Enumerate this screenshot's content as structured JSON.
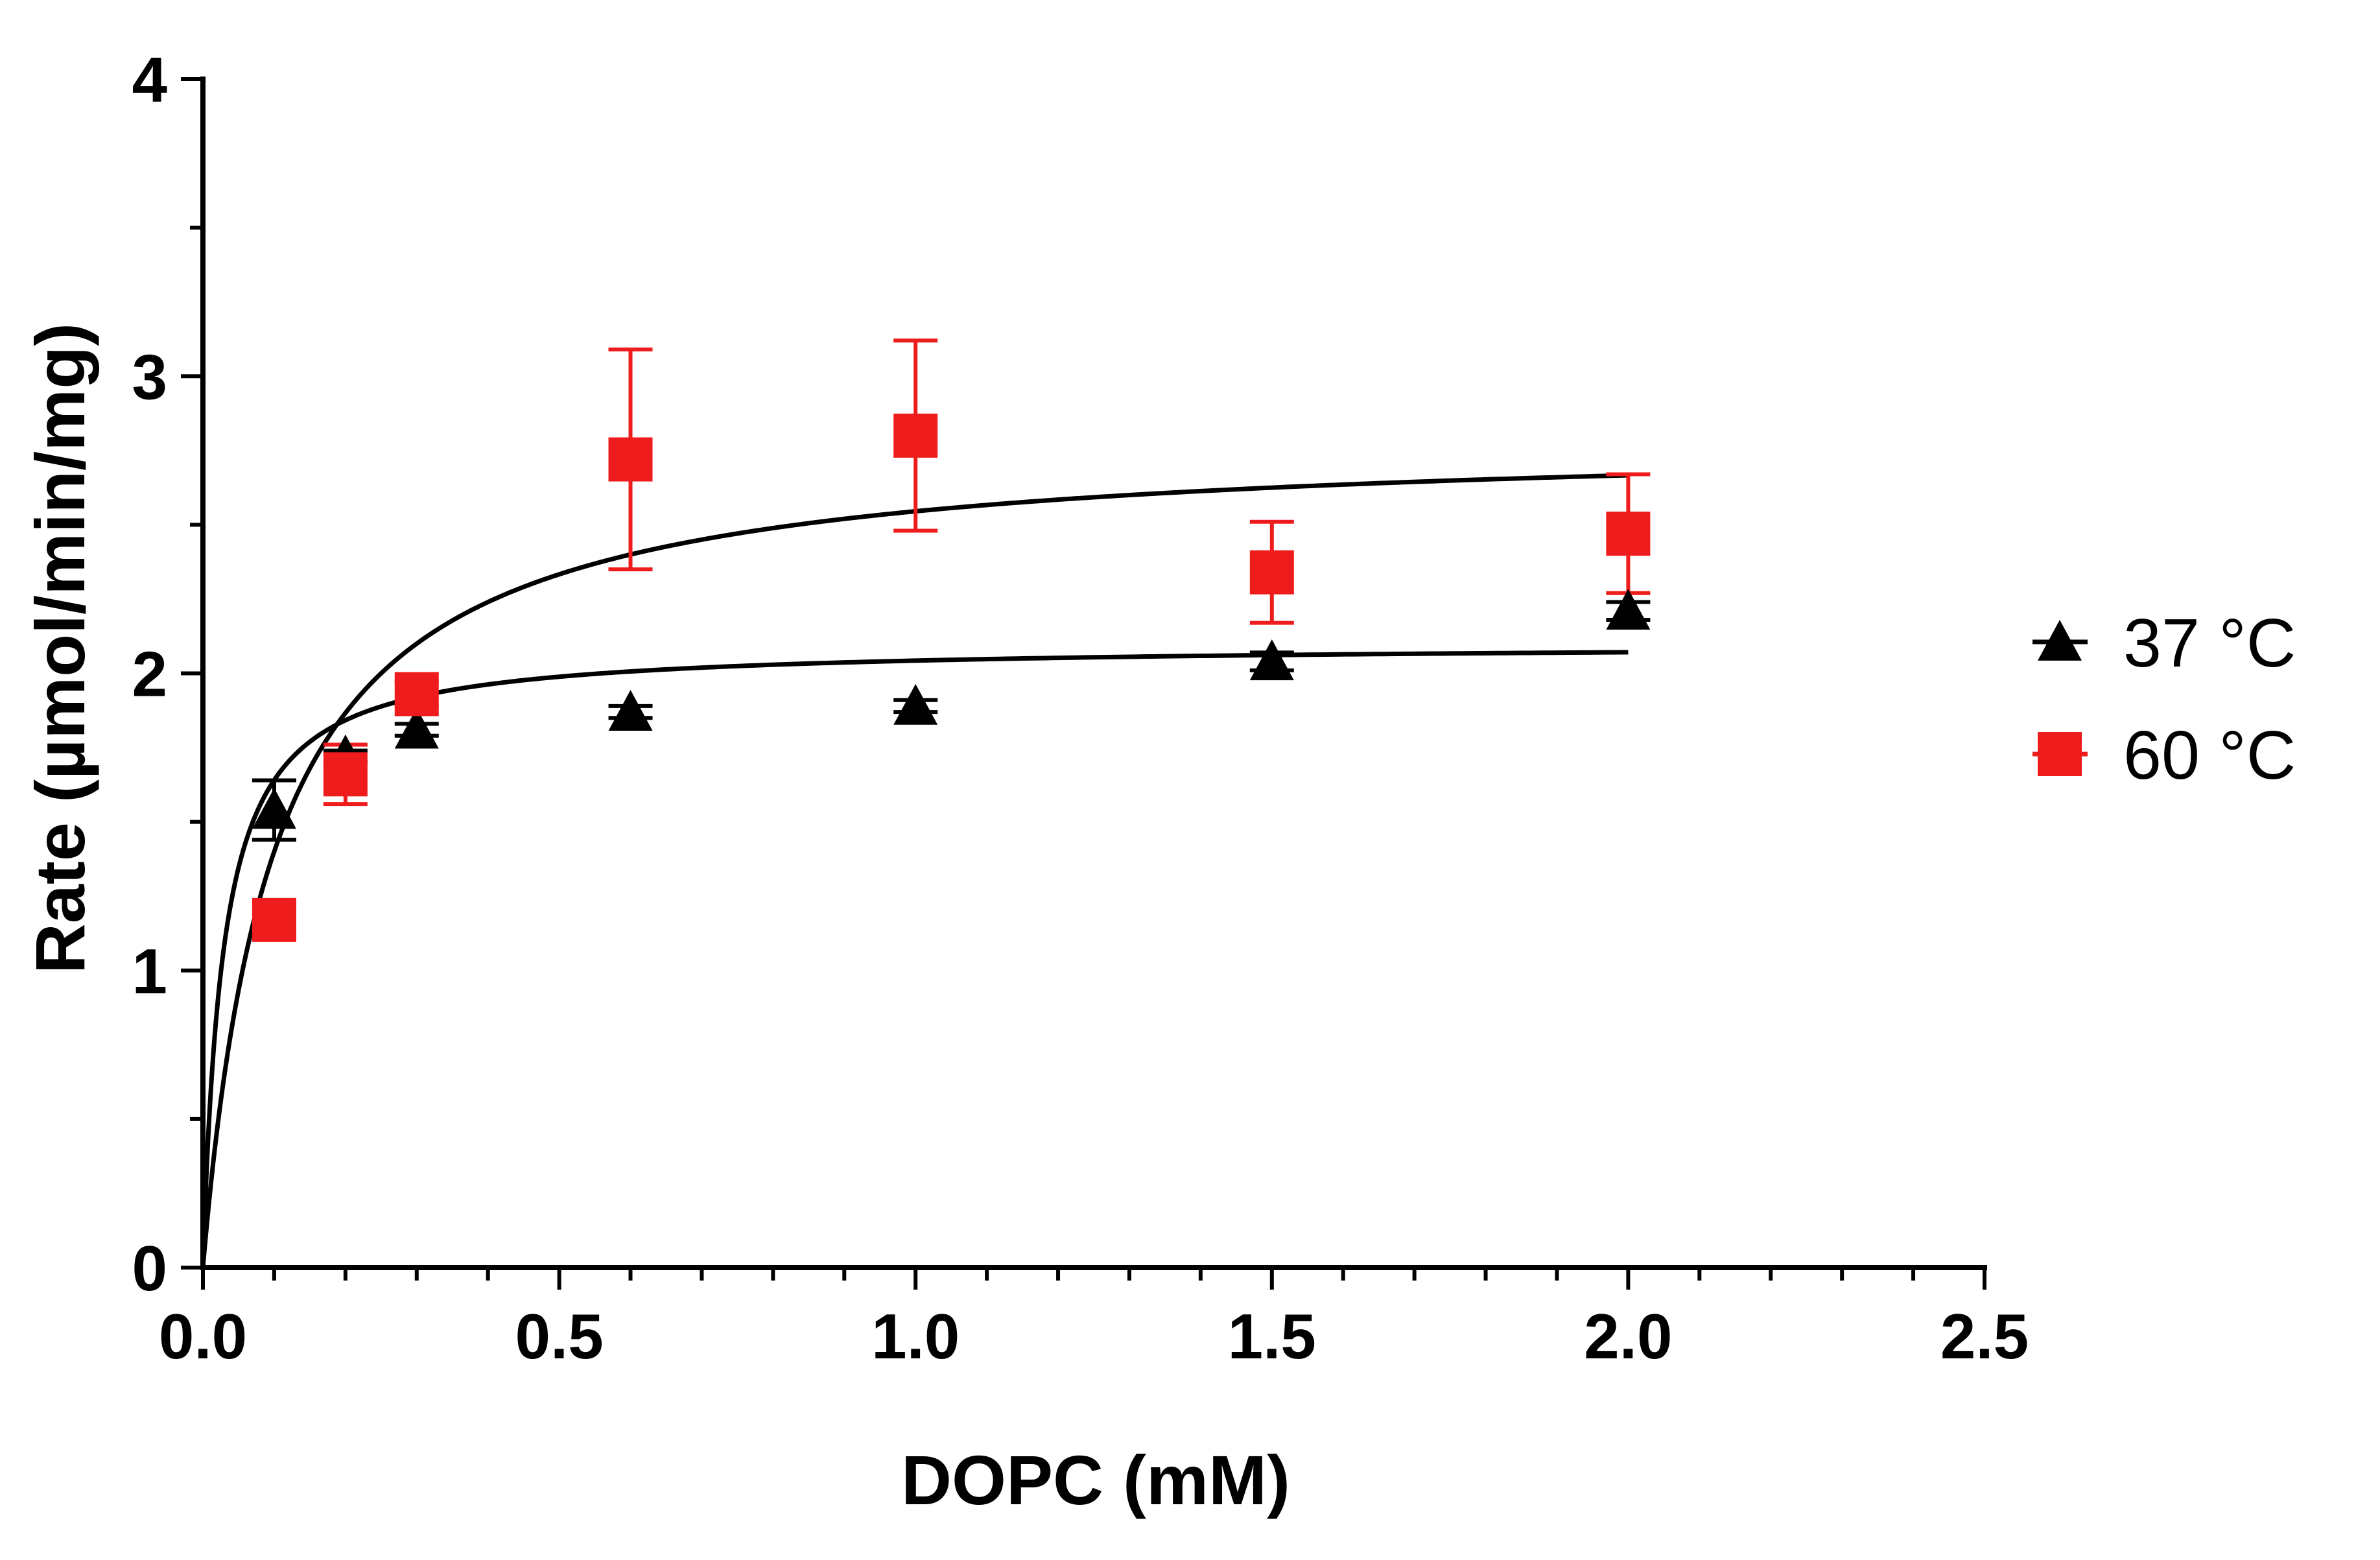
{
  "chart_data": {
    "type": "scatter",
    "title": "",
    "xlabel": "DOPC (mM)",
    "ylabel": "Rate (µmol/min/mg)",
    "xlim": [
      0,
      2.5
    ],
    "ylim": [
      0,
      4
    ],
    "x_ticks": [
      "0.0",
      "0.5",
      "1.0",
      "1.5",
      "2.0",
      "2.5"
    ],
    "y_ticks": [
      "0",
      "1",
      "2",
      "3",
      "4"
    ],
    "grid": false,
    "legend_position": "right",
    "series": [
      {
        "name": "37 °C",
        "marker": "triangle",
        "color": "#000000",
        "x": [
          0.1,
          0.2,
          0.3,
          0.6,
          1.0,
          1.5,
          2.0
        ],
        "y": [
          1.54,
          1.72,
          1.81,
          1.87,
          1.89,
          2.04,
          2.21
        ],
        "error": [
          0.1,
          0.02,
          0.02,
          0.02,
          0.02,
          0.03,
          0.03
        ],
        "fit": {
          "model": "Michaelis-Menten",
          "vmax": 2.1,
          "km": 0.028,
          "x_end": 2.0
        }
      },
      {
        "name": "60 °C",
        "marker": "square",
        "color": "#ee1c1c",
        "x": [
          0.1,
          0.2,
          0.3,
          0.6,
          1.0,
          1.5,
          2.0
        ],
        "y": [
          1.17,
          1.66,
          1.93,
          2.72,
          2.8,
          2.34,
          2.47
        ],
        "error": [
          0.05,
          0.1,
          0.04,
          0.37,
          0.32,
          0.17,
          0.2
        ],
        "fit": {
          "model": "Michaelis-Menten",
          "vmax": 2.8,
          "km": 0.1,
          "x_end": 2.0
        }
      }
    ]
  }
}
